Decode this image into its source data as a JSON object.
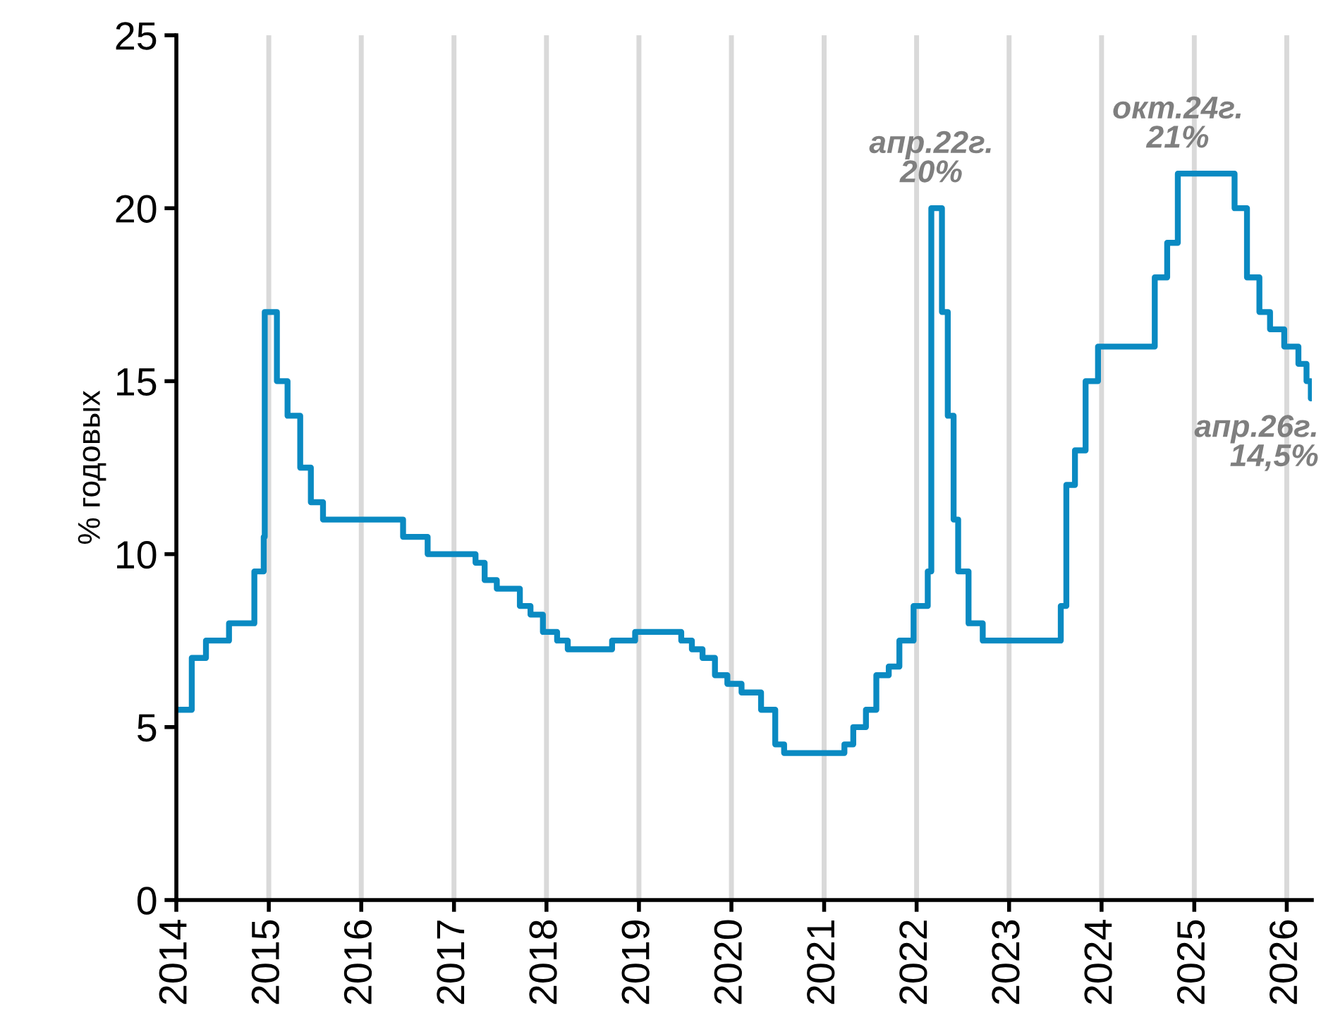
{
  "chart_data": {
    "type": "step",
    "ylabel": "% годовых",
    "x": [
      "2014-01-01",
      "2014-03-03",
      "2014-04-28",
      "2014-07-28",
      "2014-11-05",
      "2014-12-12",
      "2014-12-16",
      "2015-02-02",
      "2015-03-16",
      "2015-05-05",
      "2015-06-16",
      "2015-08-03",
      "2016-06-14",
      "2016-09-19",
      "2017-03-27",
      "2017-05-02",
      "2017-06-19",
      "2017-09-18",
      "2017-10-30",
      "2017-12-18",
      "2018-02-12",
      "2018-03-26",
      "2018-09-17",
      "2018-12-17",
      "2019-06-17",
      "2019-07-29",
      "2019-09-09",
      "2019-10-28",
      "2019-12-16",
      "2020-02-10",
      "2020-04-27",
      "2020-06-22",
      "2020-07-27",
      "2021-03-22",
      "2021-04-26",
      "2021-06-15",
      "2021-07-26",
      "2021-09-13",
      "2021-10-25",
      "2021-12-20",
      "2022-02-14",
      "2022-02-28",
      "2022-04-11",
      "2022-05-04",
      "2022-05-27",
      "2022-06-14",
      "2022-07-25",
      "2022-09-19",
      "2023-07-24",
      "2023-08-15",
      "2023-09-18",
      "2023-10-30",
      "2023-12-18",
      "2024-07-29",
      "2024-09-16",
      "2024-10-28",
      "2025-06-09",
      "2025-07-28",
      "2025-09-15",
      "2025-10-27",
      "2025-12-22",
      "2026-02-16",
      "2026-03-20",
      "2026-04-06"
    ],
    "series": [
      {
        "color": "#0a8ac2",
        "values": [
          5.5,
          7,
          7.5,
          8,
          9.5,
          10.5,
          17,
          15,
          14,
          12.5,
          11.5,
          11,
          10.5,
          10,
          9.75,
          9.25,
          9,
          8.5,
          8.25,
          7.75,
          7.5,
          7.25,
          7.5,
          7.75,
          7.5,
          7.25,
          7,
          6.5,
          6.25,
          6,
          5.5,
          4.5,
          4.25,
          4.5,
          5,
          5.5,
          6.5,
          6.75,
          7.5,
          8.5,
          9.5,
          20,
          17,
          14,
          11,
          9.5,
          8,
          7.5,
          8.5,
          12,
          13,
          15,
          16,
          18,
          19,
          21,
          20,
          18,
          17,
          16.5,
          16,
          15.5,
          15,
          14.5
        ]
      }
    ],
    "xlim": [
      "2014-01-01",
      "2026-04-10"
    ],
    "xticks": [
      "2014",
      "2015",
      "2016",
      "2017",
      "2018",
      "2019",
      "2020",
      "2021",
      "2022",
      "2023",
      "2024",
      "2025",
      "2026"
    ],
    "ylim": [
      0,
      25
    ],
    "yticks": [
      0,
      5,
      10,
      15,
      20,
      25
    ],
    "grid": "x",
    "annotations": [
      {
        "text": "апр.22г.\n20%",
        "x": "2022-02-28",
        "y": 20
      },
      {
        "text": "окт.24г.\n21%",
        "x": "2024-10-28",
        "y": 21
      },
      {
        "text": "апр.26г.\n14,5%",
        "x": "2026-04-06",
        "y": 14.5
      }
    ]
  }
}
